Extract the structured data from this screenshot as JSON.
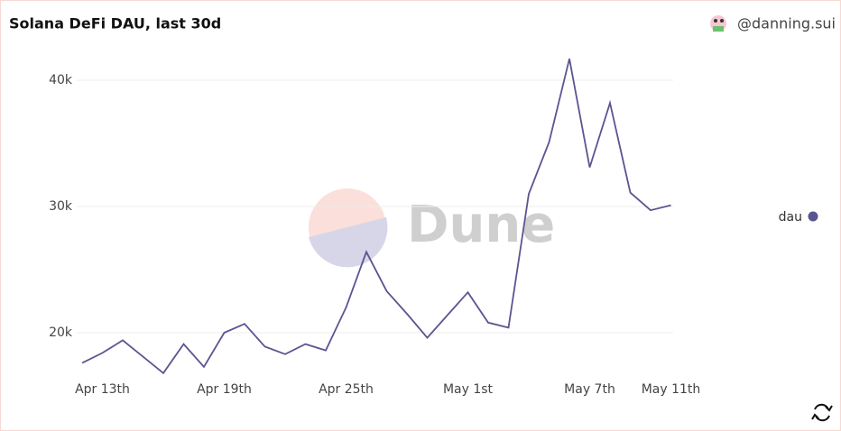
{
  "chart_data": {
    "type": "line",
    "title": "Solana DeFi DAU, last 30d",
    "author": "@danning.sui",
    "watermark": "Dune",
    "categories": [
      "Apr 12th",
      "Apr 13th",
      "Apr 14th",
      "Apr 15th",
      "Apr 16th",
      "Apr 17th",
      "Apr 18th",
      "Apr 19th",
      "Apr 20th",
      "Apr 21st",
      "Apr 22nd",
      "Apr 23rd",
      "Apr 24th",
      "Apr 25th",
      "Apr 26th",
      "Apr 27th",
      "Apr 28th",
      "Apr 29th",
      "Apr 30th",
      "May 1st",
      "May 2nd",
      "May 3rd",
      "May 4th",
      "May 5th",
      "May 6th",
      "May 7th",
      "May 8th",
      "May 9th",
      "May 10th",
      "May 11th"
    ],
    "xticks": [
      "Apr 13th",
      "Apr 19th",
      "Apr 25th",
      "May 1st",
      "May 7th",
      "May 11th"
    ],
    "series": [
      {
        "name": "dau",
        "color": "#5a5591",
        "values": [
          17600,
          18400,
          19400,
          18100,
          16800,
          19100,
          17300,
          20000,
          20700,
          18900,
          18300,
          19100,
          18600,
          22000,
          26400,
          23300,
          21500,
          19600,
          21400,
          23200,
          20800,
          20400,
          31000,
          35100,
          41700,
          33100,
          38200,
          31100,
          29700,
          30100
        ]
      }
    ],
    "ylim": [
      16000,
      42000
    ],
    "yticks": [
      {
        "value": 20000,
        "label": "20k"
      },
      {
        "value": 30000,
        "label": "30k"
      },
      {
        "value": 40000,
        "label": "40k"
      }
    ],
    "grid": true,
    "legend": "right"
  }
}
